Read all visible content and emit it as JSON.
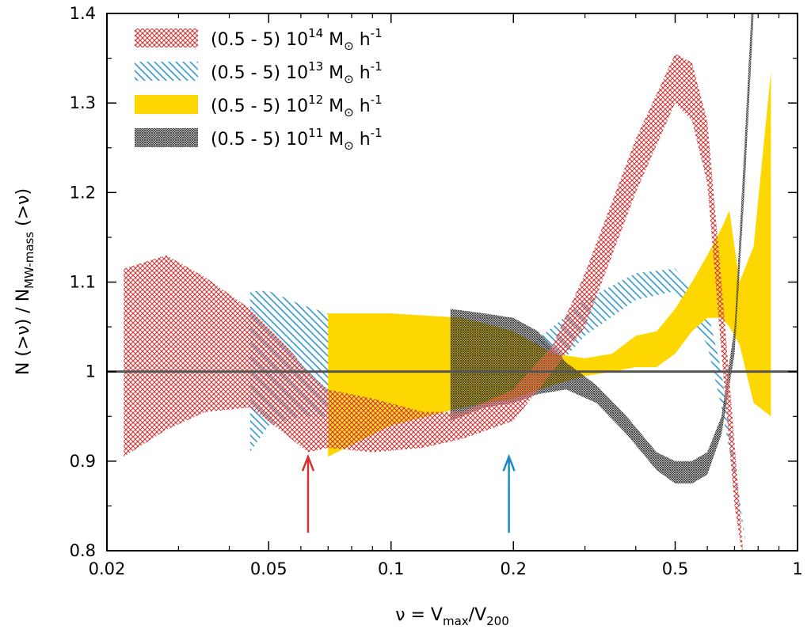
{
  "chart_data": {
    "type": "area",
    "x_scale": "log",
    "xlim": [
      0.02,
      1
    ],
    "ylim": [
      0.8,
      1.4
    ],
    "xlabel": {
      "main": "ν = V",
      "sub1": "max",
      "mid": "/V",
      "sub2": "200"
    },
    "ylabel": {
      "main": "N (>ν)  /  N",
      "sub": "MW-mass",
      "tail": " (>ν)"
    },
    "x_ticks": [
      {
        "value": 0.02,
        "label": "0.02"
      },
      {
        "value": 0.05,
        "label": "0.05"
      },
      {
        "value": 0.1,
        "label": "0.1"
      },
      {
        "value": 0.2,
        "label": "0.2"
      },
      {
        "value": 0.5,
        "label": "0.5"
      },
      {
        "value": 1,
        "label": "1"
      }
    ],
    "y_ticks": [
      {
        "value": 0.8,
        "label": "0.8"
      },
      {
        "value": 0.9,
        "label": "0.9"
      },
      {
        "value": 1.0,
        "label": "1"
      },
      {
        "value": 1.1,
        "label": "1.1"
      },
      {
        "value": 1.2,
        "label": "1.2"
      },
      {
        "value": 1.3,
        "label": "1.3"
      },
      {
        "value": 1.4,
        "label": "1.4"
      }
    ],
    "reference_line": {
      "y": 1.0,
      "color": "#555555"
    },
    "legend_position": "top-left",
    "series": [
      {
        "name": "(0.5 - 5) 10^14 M_sun h^-1",
        "legend": {
          "pre": "(0.5 - 5) 10",
          "exp": "14",
          "mid": " M",
          "sub": "⊙",
          "post": " h",
          "post_exp": "-1"
        },
        "color": "#cc3333",
        "pattern": "crosshatch",
        "x": [
          0.022,
          0.028,
          0.035,
          0.045,
          0.055,
          0.0625,
          0.07,
          0.09,
          0.12,
          0.15,
          0.2,
          0.25,
          0.3,
          0.4,
          0.5,
          0.55,
          0.6,
          0.65,
          0.7,
          0.74
        ],
        "upper": [
          1.115,
          1.13,
          1.105,
          1.07,
          1.03,
          1.0,
          0.98,
          0.97,
          0.955,
          0.955,
          0.98,
          1.03,
          1.11,
          1.26,
          1.355,
          1.345,
          1.28,
          1.1,
          0.92,
          0.78
        ],
        "lower": [
          0.905,
          0.935,
          0.955,
          0.96,
          0.93,
          0.91,
          0.915,
          0.91,
          0.915,
          0.925,
          0.945,
          1.0,
          1.05,
          1.2,
          1.3,
          1.28,
          1.21,
          1.02,
          0.85,
          0.78
        ]
      },
      {
        "name": "(0.5 - 5) 10^13 M_sun h^-1",
        "legend": {
          "pre": "(0.5 - 5) 10",
          "exp": "13",
          "mid": " M",
          "sub": "⊙",
          "post": " h",
          "post_exp": "-1"
        },
        "color": "#3399cc",
        "pattern": "diagonal",
        "x": [
          0.045,
          0.05,
          0.06,
          0.07,
          0.09,
          0.12,
          0.15,
          0.2,
          0.25,
          0.3,
          0.4,
          0.5,
          0.6,
          0.65,
          0.7,
          0.75
        ],
        "upper": [
          1.09,
          1.09,
          1.075,
          1.065,
          1.05,
          1.025,
          1.015,
          1.015,
          1.05,
          1.08,
          1.11,
          1.115,
          1.07,
          1.0,
          0.9,
          0.8
        ],
        "lower": [
          0.91,
          0.94,
          0.95,
          0.95,
          0.96,
          0.965,
          0.97,
          0.975,
          1.0,
          1.04,
          1.08,
          1.09,
          1.03,
          0.96,
          0.88,
          0.8
        ]
      },
      {
        "name": "(0.5 - 5) 10^12 M_sun h^-1",
        "legend": {
          "pre": "(0.5 - 5) 10",
          "exp": "12",
          "mid": " M",
          "sub": "⊙",
          "post": " h",
          "post_exp": "-1"
        },
        "color": "#ffd700",
        "pattern": "solid",
        "x": [
          0.07,
          0.1,
          0.15,
          0.2,
          0.25,
          0.3,
          0.35,
          0.4,
          0.45,
          0.5,
          0.55,
          0.6,
          0.65,
          0.68,
          0.72,
          0.78,
          0.86
        ],
        "upper": [
          1.065,
          1.065,
          1.06,
          1.045,
          1.02,
          1.015,
          1.02,
          1.04,
          1.045,
          1.07,
          1.1,
          1.13,
          1.16,
          1.18,
          1.1,
          1.14,
          1.335
        ],
        "lower": [
          0.905,
          0.94,
          0.96,
          0.97,
          0.985,
          0.995,
          1.0,
          1.005,
          1.005,
          1.02,
          1.045,
          1.06,
          1.06,
          1.05,
          1.03,
          0.965,
          0.95
        ]
      },
      {
        "name": "(0.5 - 5) 10^11 M_sun h^-1",
        "legend": {
          "pre": "(0.5 - 5) 10",
          "exp": "11",
          "mid": " M",
          "sub": "⊙",
          "post": " h",
          "post_exp": "-1"
        },
        "color": "#333333",
        "pattern": "dense-crosshatch",
        "x": [
          0.14,
          0.17,
          0.2,
          0.23,
          0.27,
          0.32,
          0.38,
          0.45,
          0.5,
          0.55,
          0.6,
          0.65,
          0.7,
          0.74,
          0.78
        ],
        "upper": [
          1.07,
          1.065,
          1.06,
          1.045,
          1.01,
          0.985,
          0.95,
          0.91,
          0.9,
          0.9,
          0.91,
          0.95,
          1.05,
          1.25,
          1.45
        ],
        "lower": [
          0.945,
          0.96,
          0.965,
          0.975,
          0.98,
          0.965,
          0.93,
          0.89,
          0.875,
          0.875,
          0.885,
          0.93,
          1.02,
          1.2,
          1.4
        ]
      }
    ],
    "arrows": [
      {
        "x": 0.0625,
        "y_from": 0.82,
        "y_to": 0.905,
        "color": "#cc3333"
      },
      {
        "x": 0.195,
        "y_from": 0.82,
        "y_to": 0.905,
        "color": "#1a8acc"
      }
    ]
  }
}
